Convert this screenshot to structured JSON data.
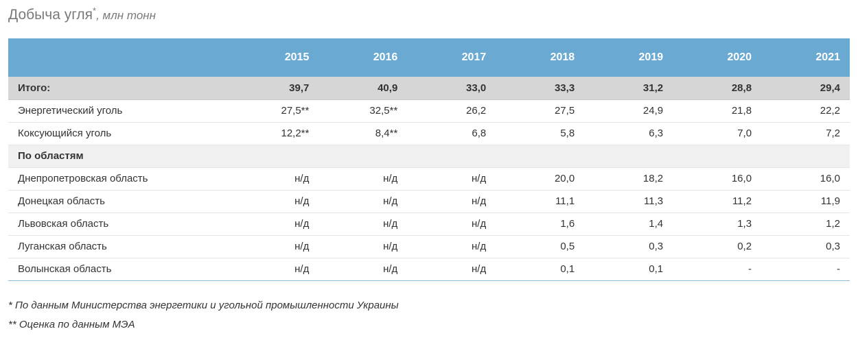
{
  "title": {
    "main": "Добыча угля",
    "mark": "*",
    "unit": ", млн тонн"
  },
  "chart_data": {
    "type": "table",
    "columns": [
      "",
      "2015",
      "2016",
      "2017",
      "2018",
      "2019",
      "2020",
      "2021"
    ],
    "rows": [
      {
        "kind": "total",
        "label": "Итого:",
        "values": [
          "39,7",
          "40,9",
          "33,0",
          "33,3",
          "31,2",
          "28,8",
          "29,4"
        ]
      },
      {
        "kind": "data",
        "label": "Энергетический уголь",
        "values": [
          "27,5**",
          "32,5**",
          "26,2",
          "27,5",
          "24,9",
          "21,8",
          "22,2"
        ]
      },
      {
        "kind": "data",
        "label": "Коксующийся уголь",
        "values": [
          "12,2**",
          "8,4**",
          "6,8",
          "5,8",
          "6,3",
          "7,0",
          "7,2"
        ]
      },
      {
        "kind": "section",
        "label": "По областям",
        "values": [
          "",
          "",
          "",
          "",
          "",
          "",
          ""
        ]
      },
      {
        "kind": "data",
        "label": "Днепропетровская область",
        "values": [
          "н/д",
          "н/д",
          "н/д",
          "20,0",
          "18,2",
          "16,0",
          "16,0"
        ]
      },
      {
        "kind": "data",
        "label": "Донецкая область",
        "values": [
          "н/д",
          "н/д",
          "н/д",
          "11,1",
          "11,3",
          "11,2",
          "11,9"
        ]
      },
      {
        "kind": "data",
        "label": "Львовская область",
        "values": [
          "н/д",
          "н/д",
          "н/д",
          "1,6",
          "1,4",
          "1,3",
          "1,2"
        ]
      },
      {
        "kind": "data",
        "label": "Луганская область",
        "values": [
          "н/д",
          "н/д",
          "н/д",
          "0,5",
          "0,3",
          "0,2",
          "0,3"
        ]
      },
      {
        "kind": "data",
        "label": "Волынская область",
        "values": [
          "н/д",
          "н/д",
          "н/д",
          "0,1",
          "0,1",
          "-",
          "-"
        ]
      }
    ]
  },
  "footnotes": [
    "* По данным Министерства энергетики и угольной промышленности Украины",
    "** Оценка по данным МЭА"
  ],
  "colors": {
    "header_bg": "#6aa9d2",
    "total_row_bg": "#d6d6d6",
    "section_row_bg": "#f0f0f0",
    "title_text": "#7a7a7a"
  }
}
